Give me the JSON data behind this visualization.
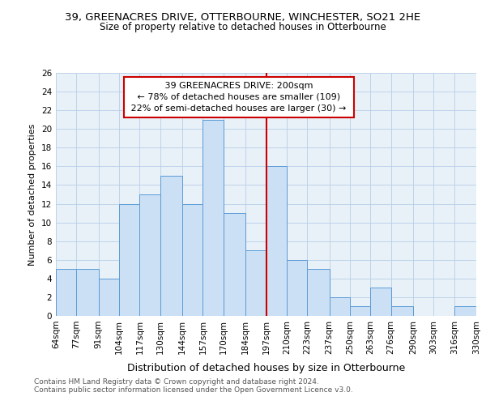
{
  "title1": "39, GREENACRES DRIVE, OTTERBOURNE, WINCHESTER, SO21 2HE",
  "title2": "Size of property relative to detached houses in Otterbourne",
  "xlabel": "Distribution of detached houses by size in Otterbourne",
  "ylabel": "Number of detached properties",
  "footer1": "Contains HM Land Registry data © Crown copyright and database right 2024.",
  "footer2": "Contains public sector information licensed under the Open Government Licence v3.0.",
  "annotation_line1": "39 GREENACRES DRIVE: 200sqm",
  "annotation_line2": "← 78% of detached houses are smaller (109)",
  "annotation_line3": "22% of semi-detached houses are larger (30) →",
  "bins": [
    64,
    77,
    91,
    104,
    117,
    130,
    144,
    157,
    170,
    184,
    197,
    210,
    223,
    237,
    250,
    263,
    276,
    290,
    303,
    316,
    330
  ],
  "counts": [
    5,
    5,
    4,
    12,
    13,
    15,
    12,
    21,
    11,
    7,
    16,
    6,
    5,
    2,
    1,
    3,
    1,
    0,
    0,
    1
  ],
  "bar_color": "#cce0f5",
  "bar_edge_color": "#5b9bd5",
  "ref_line_x": 197,
  "ref_line_color": "#cc0000",
  "annotation_box_edge_color": "#cc0000",
  "annotation_bg_color": "#ffffff",
  "grid_color": "#b8cfe8",
  "background_color": "#e8f0f8",
  "ylim": [
    0,
    26
  ],
  "yticks": [
    0,
    2,
    4,
    6,
    8,
    10,
    12,
    14,
    16,
    18,
    20,
    22,
    24,
    26
  ],
  "title1_fontsize": 9.5,
  "title2_fontsize": 8.5,
  "xlabel_fontsize": 9,
  "ylabel_fontsize": 8,
  "tick_fontsize": 7.5,
  "annotation_fontsize": 8,
  "footer_fontsize": 6.5
}
